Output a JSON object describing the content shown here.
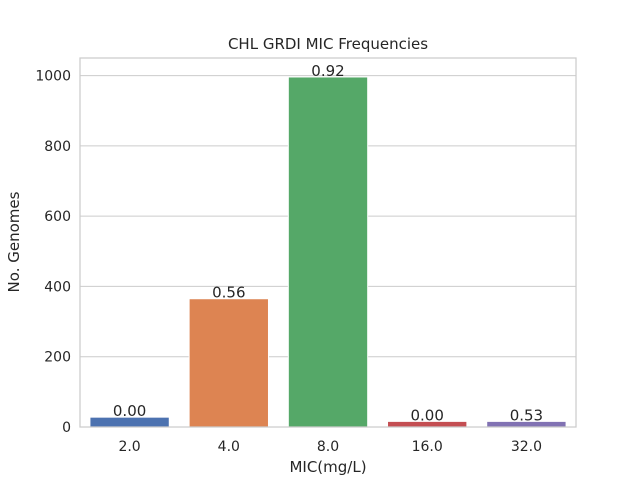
{
  "chart_data": {
    "type": "bar",
    "title": "CHL GRDI MIC Frequencies",
    "xlabel": "MIC(mg/L)",
    "ylabel": "No. Genomes",
    "categories": [
      "2.0",
      "4.0",
      "8.0",
      "16.0",
      "32.0"
    ],
    "values": [
      28,
      365,
      996,
      16,
      16
    ],
    "bar_labels": [
      "0.00",
      "0.56",
      "0.92",
      "0.00",
      "0.53"
    ],
    "ylim": [
      0,
      1050
    ],
    "yticks": [
      0,
      200,
      400,
      600,
      800,
      1000
    ],
    "grid": "horizontal",
    "colors": [
      "#4c72b0",
      "#dd8452",
      "#55a868",
      "#c44e52",
      "#8172b3"
    ]
  }
}
